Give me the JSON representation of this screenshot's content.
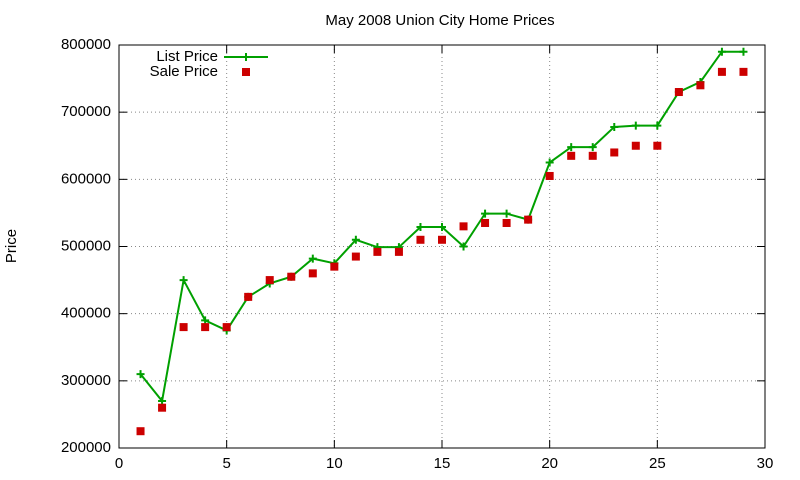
{
  "chart_data": {
    "type": "line",
    "title": "May 2008 Union City Home Prices",
    "y_label": "Price",
    "x": [
      1,
      2,
      3,
      4,
      5,
      6,
      7,
      8,
      9,
      10,
      11,
      12,
      13,
      14,
      15,
      16,
      17,
      18,
      19,
      20,
      21,
      22,
      23,
      24,
      25,
      26,
      27,
      28,
      29
    ],
    "series": [
      {
        "name": "List Price",
        "color": "#00a000",
        "style": "linespoints",
        "values": [
          310000,
          270000,
          450000,
          390000,
          375000,
          425000,
          445000,
          455000,
          482000,
          475000,
          510000,
          499000,
          499000,
          529000,
          529000,
          500000,
          549000,
          549000,
          540000,
          625000,
          648000,
          648000,
          678000,
          680000,
          680000,
          730000,
          745000,
          790000,
          790000
        ]
      },
      {
        "name": "Sale Price",
        "color": "#cc0000",
        "style": "points",
        "values": [
          225000,
          260000,
          380000,
          380000,
          380000,
          425000,
          450000,
          455000,
          460000,
          470000,
          485000,
          492000,
          492000,
          510000,
          510000,
          530000,
          535000,
          535000,
          540000,
          605000,
          635000,
          635000,
          640000,
          650000,
          650000,
          730000,
          740000,
          760000,
          760000
        ]
      }
    ],
    "xlim": [
      0,
      30
    ],
    "xticks": [
      0,
      5,
      10,
      15,
      20,
      25,
      30
    ],
    "ylim": [
      200000,
      800000
    ],
    "yticks": [
      200000,
      300000,
      400000,
      500000,
      600000,
      700000,
      800000
    ],
    "grid": true,
    "legend": "top-left"
  }
}
